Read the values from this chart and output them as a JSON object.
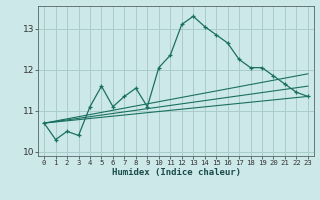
{
  "xlabel": "Humidex (Indice chaleur)",
  "bg_color": "#cce8e8",
  "grid_color": "#aacccc",
  "line_color": "#1a7060",
  "xlim": [
    -0.5,
    23.5
  ],
  "ylim": [
    9.9,
    13.55
  ],
  "xticks": [
    0,
    1,
    2,
    3,
    4,
    5,
    6,
    7,
    8,
    9,
    10,
    11,
    12,
    13,
    14,
    15,
    16,
    17,
    18,
    19,
    20,
    21,
    22,
    23
  ],
  "yticks": [
    10,
    11,
    12,
    13
  ],
  "main_x": [
    0,
    1,
    2,
    3,
    4,
    5,
    6,
    7,
    8,
    9,
    10,
    11,
    12,
    13,
    14,
    15,
    16,
    17,
    18,
    19,
    20,
    21,
    22,
    23
  ],
  "main_y": [
    10.7,
    10.3,
    10.5,
    10.4,
    11.1,
    11.6,
    11.1,
    11.35,
    11.55,
    11.1,
    12.05,
    12.35,
    13.1,
    13.3,
    13.05,
    12.85,
    12.65,
    12.25,
    12.05,
    12.05,
    11.85,
    11.65,
    11.45,
    11.35
  ],
  "fan_lines": [
    {
      "x": [
        0,
        23
      ],
      "y": [
        10.7,
        11.35
      ]
    },
    {
      "x": [
        0,
        23
      ],
      "y": [
        10.7,
        11.6
      ]
    },
    {
      "x": [
        0,
        23
      ],
      "y": [
        10.7,
        11.9
      ]
    }
  ]
}
